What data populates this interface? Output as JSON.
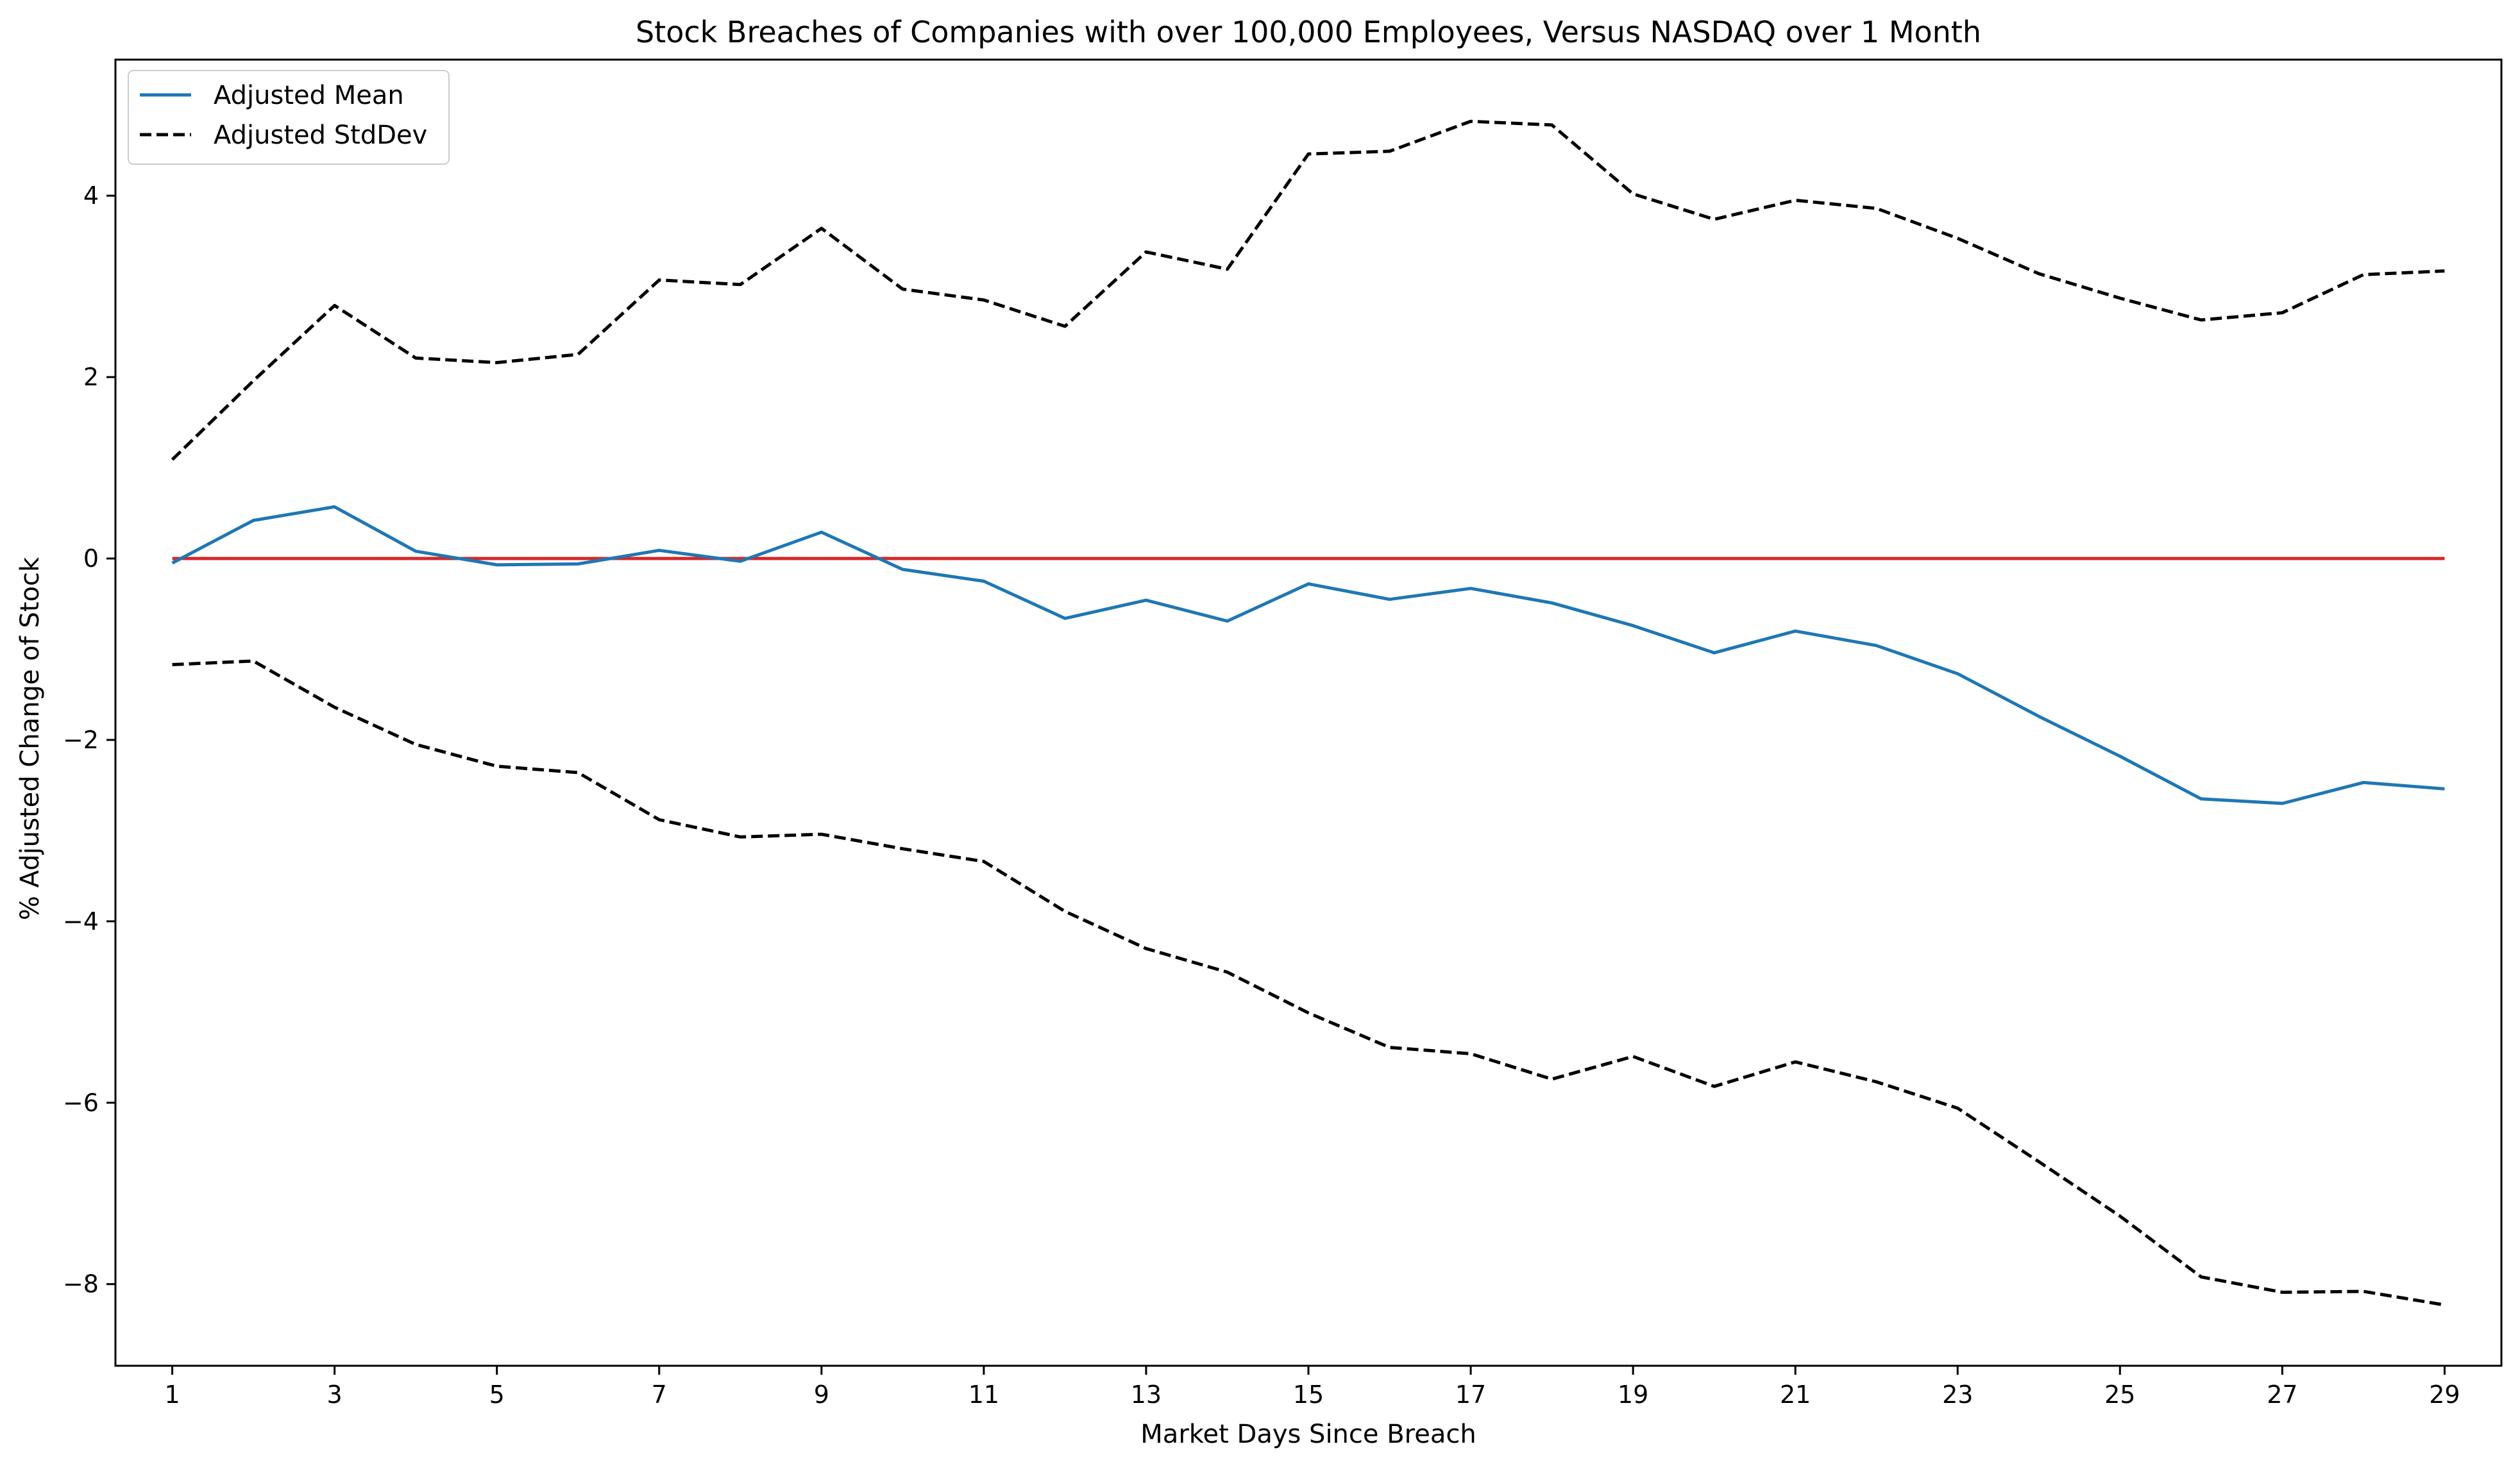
{
  "chart_data": {
    "type": "line",
    "title": "Stock Breaches of Companies with over 100,000 Employees, Versus NASDAQ over 1 Month",
    "xlabel": "Market Days Since Breach",
    "ylabel": "% Adjusted Change of Stock",
    "xlim": [
      0.3,
      29.7
    ],
    "ylim": [
      -8.9,
      5.5
    ],
    "xticks": [
      1,
      3,
      5,
      7,
      9,
      11,
      13,
      15,
      17,
      19,
      21,
      23,
      25,
      27,
      29
    ],
    "yticks": [
      -8,
      -6,
      -4,
      -2,
      0,
      2,
      4
    ],
    "ytick_labels": [
      "−8",
      "−6",
      "−4",
      "−2",
      "0",
      "2",
      "4"
    ],
    "grid": false,
    "legend_position": "top-left",
    "x": [
      1,
      2,
      3,
      4,
      5,
      6,
      7,
      8,
      9,
      10,
      11,
      12,
      13,
      14,
      15,
      16,
      17,
      18,
      19,
      20,
      21,
      22,
      23,
      24,
      25,
      26,
      27,
      28,
      29
    ],
    "series": [
      {
        "name": "Adjusted Mean",
        "style": "solid",
        "color": "#1f77b4",
        "in_legend": true,
        "values": [
          -0.05,
          0.42,
          0.57,
          0.08,
          -0.07,
          -0.06,
          0.09,
          -0.03,
          0.29,
          -0.12,
          -0.25,
          -0.66,
          -0.46,
          -0.69,
          -0.28,
          -0.45,
          -0.33,
          -0.49,
          -0.74,
          -1.04,
          -0.8,
          -0.96,
          -1.27,
          -1.74,
          -2.18,
          -2.65,
          -2.7,
          -2.47,
          -2.54
        ]
      },
      {
        "name": "Adjusted StdDev",
        "style": "dashed",
        "color": "#000000",
        "in_legend": true,
        "values": [
          1.09,
          1.96,
          2.79,
          2.21,
          2.16,
          2.25,
          3.07,
          3.02,
          3.64,
          2.97,
          2.85,
          2.56,
          3.38,
          3.19,
          4.46,
          4.49,
          4.82,
          4.78,
          4.02,
          3.74,
          3.95,
          3.86,
          3.53,
          3.14,
          2.87,
          2.63,
          2.71,
          3.13,
          3.17
        ]
      },
      {
        "name": "",
        "style": "dashed",
        "color": "#000000",
        "in_legend": false,
        "values": [
          -1.17,
          -1.13,
          -1.64,
          -2.05,
          -2.29,
          -2.36,
          -2.88,
          -3.07,
          -3.04,
          -3.2,
          -3.34,
          -3.89,
          -4.3,
          -4.56,
          -5.01,
          -5.39,
          -5.46,
          -5.74,
          -5.49,
          -5.82,
          -5.55,
          -5.77,
          -6.06,
          -6.65,
          -7.25,
          -7.92,
          -8.09,
          -8.08,
          -8.23
        ]
      },
      {
        "name": "",
        "style": "solid",
        "color": "#d62728",
        "in_legend": false,
        "values": [
          0,
          0,
          0,
          0,
          0,
          0,
          0,
          0,
          0,
          0,
          0,
          0,
          0,
          0,
          0,
          0,
          0,
          0,
          0,
          0,
          0,
          0,
          0,
          0,
          0,
          0,
          0,
          0,
          0
        ]
      }
    ]
  }
}
